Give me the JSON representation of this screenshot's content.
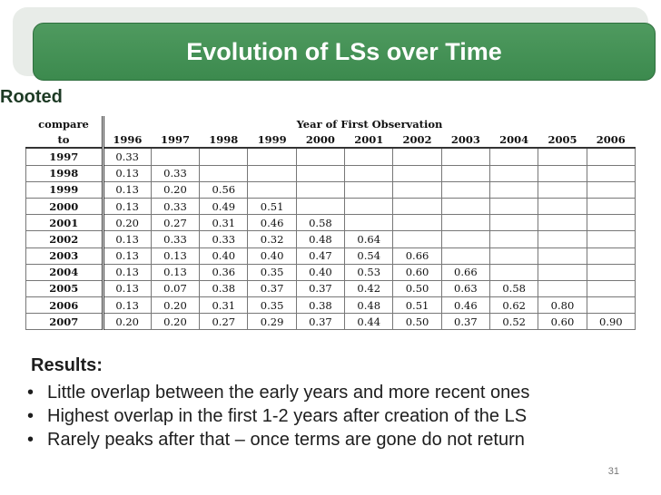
{
  "slide": {
    "title": "Evolution of LSs over Time",
    "section": "Rooted",
    "page_number": "31"
  },
  "table": {
    "corner_line1": "compare",
    "corner_line2": "to",
    "span_header": "Year of First Observation",
    "columns": [
      "1996",
      "1997",
      "1998",
      "1999",
      "2000",
      "2001",
      "2002",
      "2003",
      "2004",
      "2005",
      "2006"
    ],
    "rows": [
      {
        "year": "1997",
        "values": [
          "0.33",
          "",
          "",
          "",
          "",
          "",
          "",
          "",
          "",
          "",
          ""
        ]
      },
      {
        "year": "1998",
        "values": [
          "0.13",
          "0.33",
          "",
          "",
          "",
          "",
          "",
          "",
          "",
          "",
          ""
        ]
      },
      {
        "year": "1999",
        "values": [
          "0.13",
          "0.20",
          "0.56",
          "",
          "",
          "",
          "",
          "",
          "",
          "",
          ""
        ]
      },
      {
        "year": "2000",
        "values": [
          "0.13",
          "0.33",
          "0.49",
          "0.51",
          "",
          "",
          "",
          "",
          "",
          "",
          ""
        ]
      },
      {
        "year": "2001",
        "values": [
          "0.20",
          "0.27",
          "0.31",
          "0.46",
          "0.58",
          "",
          "",
          "",
          "",
          "",
          ""
        ]
      },
      {
        "year": "2002",
        "values": [
          "0.13",
          "0.33",
          "0.33",
          "0.32",
          "0.48",
          "0.64",
          "",
          "",
          "",
          "",
          ""
        ]
      },
      {
        "year": "2003",
        "values": [
          "0.13",
          "0.13",
          "0.40",
          "0.40",
          "0.47",
          "0.54",
          "0.66",
          "",
          "",
          "",
          ""
        ]
      },
      {
        "year": "2004",
        "values": [
          "0.13",
          "0.13",
          "0.36",
          "0.35",
          "0.40",
          "0.53",
          "0.60",
          "0.66",
          "",
          "",
          ""
        ]
      },
      {
        "year": "2005",
        "values": [
          "0.13",
          "0.07",
          "0.38",
          "0.37",
          "0.37",
          "0.42",
          "0.50",
          "0.63",
          "0.58",
          "",
          ""
        ]
      },
      {
        "year": "2006",
        "values": [
          "0.13",
          "0.20",
          "0.31",
          "0.35",
          "0.38",
          "0.48",
          "0.51",
          "0.46",
          "0.62",
          "0.80",
          ""
        ]
      },
      {
        "year": "2007",
        "values": [
          "0.20",
          "0.20",
          "0.27",
          "0.29",
          "0.37",
          "0.44",
          "0.50",
          "0.37",
          "0.52",
          "0.60",
          "0.90"
        ]
      }
    ]
  },
  "results": {
    "heading": "Results:",
    "bullet_glyph": "•",
    "items": [
      "Little overlap between the early years and more recent ones",
      "Highest overlap in the first 1-2 years after creation of the LS",
      "Rarely peaks after that – once terms are gone do not return"
    ]
  }
}
